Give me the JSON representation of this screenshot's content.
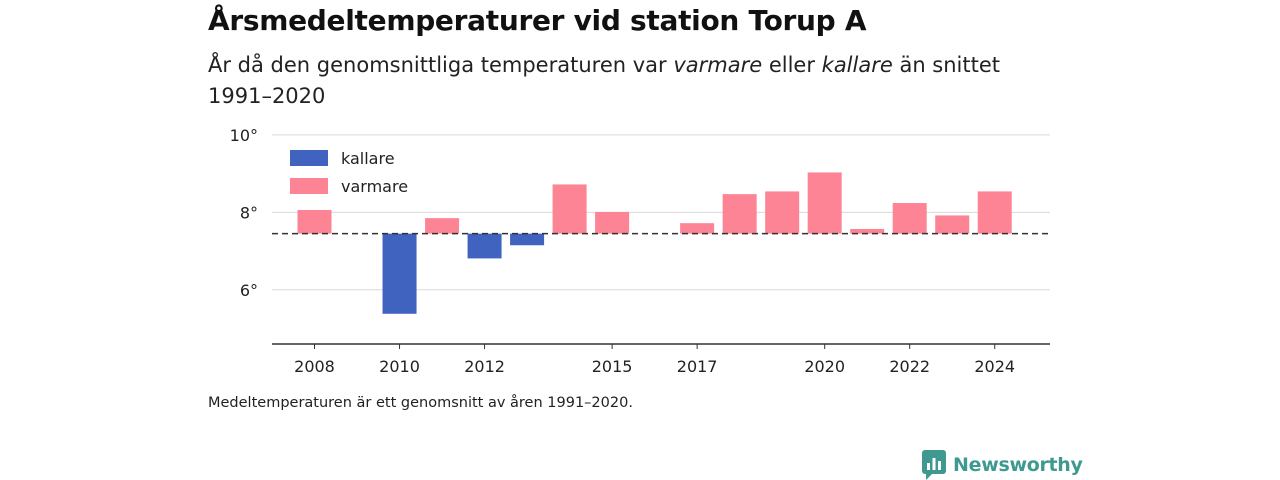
{
  "title": "Årsmedeltemperaturer vid station Torup A",
  "subtitle": {
    "part1": "År då den genomsnittliga temperaturen var ",
    "warmer_word": "varmare",
    "part2": " eller ",
    "colder_word": "kallare",
    "part3": " än snittet 1991–2020"
  },
  "footnote": "Medeltemperaturen är ett genomsnitt av åren 1991–2020.",
  "brand": "Newsworthy",
  "chart_data": {
    "type": "bar",
    "baseline": 7.45,
    "ylim": [
      4.6,
      10.1
    ],
    "yticks": [
      6,
      8,
      10
    ],
    "ytick_suffix": "°",
    "xlim": [
      2007,
      2025.3
    ],
    "xticks": [
      2008,
      2010,
      2012,
      2015,
      2017,
      2020,
      2022,
      2024
    ],
    "grid": true,
    "legend_position": "top-left",
    "legend": [
      {
        "label": "kallare",
        "color": "#4063c0"
      },
      {
        "label": "varmare",
        "color": "#fd8494"
      }
    ],
    "colors": {
      "colder": "#4063c0",
      "warmer": "#fd8494"
    },
    "bars": [
      {
        "year": 2008,
        "value": 8.06
      },
      {
        "year": 2010,
        "value": 5.38
      },
      {
        "year": 2011,
        "value": 7.85
      },
      {
        "year": 2012,
        "value": 6.81
      },
      {
        "year": 2013,
        "value": 7.15
      },
      {
        "year": 2014,
        "value": 8.72
      },
      {
        "year": 2015,
        "value": 8.01
      },
      {
        "year": 2017,
        "value": 7.72
      },
      {
        "year": 2018,
        "value": 8.47
      },
      {
        "year": 2019,
        "value": 8.54
      },
      {
        "year": 2020,
        "value": 9.03
      },
      {
        "year": 2021,
        "value": 7.57
      },
      {
        "year": 2022,
        "value": 8.24
      },
      {
        "year": 2023,
        "value": 7.92
      },
      {
        "year": 2024,
        "value": 8.54
      }
    ]
  }
}
